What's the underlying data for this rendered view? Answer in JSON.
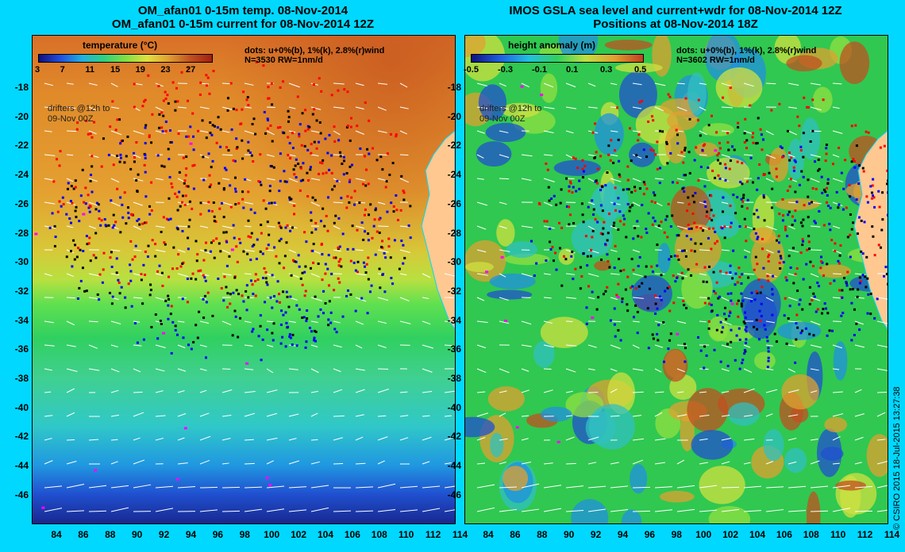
{
  "left": {
    "title_line1": "OM_afan01 0-15m temp. 08-Nov-2014",
    "title_line2": "OM_afan01 0-15m current for 08-Nov-2014 12Z",
    "legend_title": "temperature (°C)",
    "legend_ticks": [
      "3",
      "7",
      "11",
      "15",
      "19",
      "23",
      "27"
    ],
    "dots_line1": "dots: u+0%(b), 1%(k), 2.8%(r)wind",
    "dots_line2": "N=3530 RW=1nm/d",
    "drifters_line1": "drifters @12h to",
    "drifters_line2": "09-Nov 00Z"
  },
  "right": {
    "title_line1": "IMOS GSLA sea level and current+wdr for 08-Nov-2014 12Z",
    "title_line2": "Positions at 08-Nov-2014 18Z",
    "legend_title": "height anomaly (m)",
    "legend_ticks": [
      "-0.5",
      "-0.3",
      "-0.1",
      "0.1",
      "0.3",
      "0.5"
    ],
    "dots_line1": "dots: u+0%(b), 1%(k), 2.8%(r)wind",
    "dots_line2": "N=3602 RW=1nm/d",
    "drifters_line1": "drifters @12h to",
    "drifters_line2": "09-Nov 00Z"
  },
  "lat_labels": [
    "-18",
    "-20",
    "-22",
    "-24",
    "-26",
    "-28",
    "-30",
    "-32",
    "-34",
    "-36",
    "-38",
    "-40",
    "-42",
    "-44",
    "-46"
  ],
  "lon_labels": [
    "84",
    "86",
    "88",
    "90",
    "92",
    "94",
    "96",
    "98",
    "100",
    "102",
    "104",
    "106",
    "108",
    "110",
    "112",
    "114"
  ],
  "credit": "© CSIRO 2015   18-Jul-2015 13:27:38",
  "colors": {
    "background": "#00d8ff",
    "land": "#ffc891",
    "dot_blue": "#0000ff",
    "dot_black": "#000000",
    "dot_red": "#ff0000",
    "drifter": "#ff00ff"
  }
}
